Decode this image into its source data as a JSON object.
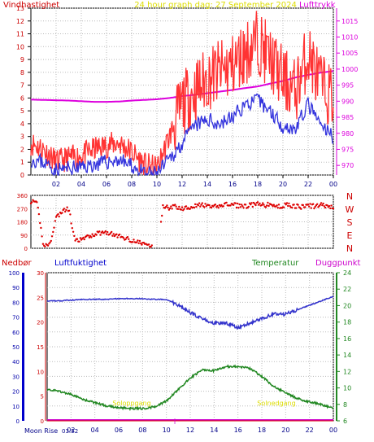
{
  "chart_data": [
    {
      "type": "line",
      "title": "24 hour graph dag:  27 September 2024",
      "series": [
        {
          "name": "Vindhastighet",
          "color": "#dd0000",
          "axis": "left"
        },
        {
          "name": "Vindkast",
          "color": "#ff3333",
          "axis": "left"
        },
        {
          "name": "Lufttrykk",
          "color": "#dd00dd",
          "axis": "right"
        }
      ],
      "left_label": "Vindhastighet",
      "right_label": "Lufttrykk",
      "y_left_ticks": [
        "0",
        "1",
        "2",
        "3",
        "4",
        "5",
        "6",
        "7",
        "8",
        "9",
        "10",
        "11",
        "12",
        "13"
      ],
      "y_right_ticks": [
        "970",
        "975",
        "980",
        "985",
        "990",
        "995",
        "1000",
        "1005",
        "1010",
        "1015"
      ],
      "ylim_left": [
        0,
        13
      ],
      "ylim_right": [
        967,
        1019
      ],
      "x_ticks": [
        "02",
        "04",
        "06",
        "08",
        "10",
        "12",
        "14",
        "16",
        "18",
        "20",
        "22",
        "00"
      ],
      "hours": [
        0,
        1,
        2,
        3,
        4,
        5,
        6,
        7,
        8,
        9,
        10,
        11,
        12,
        13,
        14,
        15,
        16,
        17,
        18,
        19,
        20,
        21,
        22,
        23,
        24
      ],
      "gust": [
        2.5,
        2.0,
        1.0,
        1.3,
        1.5,
        2.0,
        2.3,
        2.5,
        1.8,
        0.8,
        0.5,
        3.0,
        5.5,
        6.5,
        7.5,
        8.0,
        8.5,
        9.5,
        10.5,
        9.0,
        7.5,
        6.5,
        9.5,
        7.0,
        6.0
      ],
      "wind_avg": [
        1.2,
        1.0,
        0.4,
        0.5,
        0.6,
        0.8,
        1.0,
        1.2,
        0.7,
        0.1,
        0.1,
        1.2,
        2.5,
        3.8,
        4.3,
        4.0,
        4.5,
        5.5,
        5.8,
        5.0,
        3.8,
        3.6,
        5.5,
        3.8,
        3.0
      ],
      "pressure": [
        990.5,
        990.4,
        990.3,
        990.2,
        990.0,
        989.8,
        989.8,
        989.9,
        990.2,
        990.4,
        990.6,
        991.0,
        991.6,
        992.0,
        992.5,
        993.0,
        993.5,
        994.1,
        994.6,
        995.5,
        996.3,
        997.4,
        998.2,
        998.9,
        999.4
      ]
    },
    {
      "type": "scatter",
      "series": [
        {
          "name": "Vindretning",
          "color": "#dd0000"
        }
      ],
      "y_ticks": [
        "360",
        "270",
        "180",
        "90",
        "0"
      ],
      "ylim": [
        0,
        360
      ],
      "compass_labels": [
        "N",
        "W",
        "S",
        "E",
        "N"
      ],
      "x_ticks": [
        "02",
        "04",
        "06",
        "08",
        "10",
        "12",
        "14",
        "16",
        "18",
        "20",
        "22",
        "00"
      ],
      "hours": [
        0,
        0.5,
        1,
        1.5,
        2,
        2.5,
        3,
        3.5,
        4,
        4.5,
        5,
        5.5,
        6,
        6.5,
        7,
        7.5,
        8,
        8.5,
        9,
        9.5,
        10,
        10.5,
        11,
        11.5,
        12,
        12.5,
        13,
        13.5,
        14,
        14.5,
        15,
        15.5,
        16,
        16.5,
        17,
        17.5,
        18,
        18.5,
        19,
        19.5,
        20,
        20.5,
        21,
        21.5,
        22,
        22.5,
        23,
        23.5,
        24
      ],
      "direction": [
        320,
        300,
        20,
        25,
        210,
        250,
        270,
        45,
        60,
        75,
        95,
        105,
        110,
        95,
        80,
        70,
        55,
        40,
        30,
        15,
        5,
        290,
        275,
        285,
        270,
        280,
        290,
        295,
        285,
        280,
        290,
        300,
        295,
        290,
        285,
        295,
        300,
        290,
        300,
        280,
        290,
        295,
        285,
        280,
        290,
        285,
        295,
        290,
        270
      ]
    },
    {
      "type": "line",
      "series": [
        {
          "name": "Nedbør",
          "color": "#dd0000",
          "axis": "precip"
        },
        {
          "name": "Luftfuktighet",
          "color": "#3333cc",
          "axis": "left"
        },
        {
          "name": "Temperatur",
          "color": "#228822",
          "axis": "right"
        },
        {
          "name": "Duggpunkt",
          "color": "#cc00cc",
          "axis": "right"
        }
      ],
      "labels": {
        "precip": "Nedbør",
        "humidity": "Luftfuktighet",
        "temperature": "Temperatur",
        "dewpoint": "Duggpunkt"
      },
      "humidity_ticks": [
        "100",
        "90",
        "80",
        "70",
        "60",
        "50",
        "40",
        "30",
        "20",
        "10",
        "0"
      ],
      "precip_ticks": [
        "30",
        "25",
        "20",
        "15",
        "10",
        "5",
        "0"
      ],
      "temp_ticks": [
        "24",
        "22",
        "20",
        "18",
        "16",
        "14",
        "12",
        "10",
        "8",
        "6"
      ],
      "ylim_humidity": [
        0,
        100
      ],
      "ylim_precip": [
        0,
        30
      ],
      "ylim_temp": [
        6,
        24
      ],
      "x_ticks": [
        "02",
        "04",
        "06",
        "08",
        "10",
        "12",
        "14",
        "16",
        "18",
        "20",
        "22",
        "00"
      ],
      "hours": [
        0,
        1,
        2,
        3,
        4,
        5,
        6,
        7,
        8,
        9,
        10,
        11,
        12,
        13,
        14,
        15,
        16,
        17,
        18,
        19,
        20,
        21,
        22,
        23,
        24
      ],
      "humidity": [
        81,
        81,
        81.5,
        82,
        82,
        82,
        82.5,
        82.5,
        82.5,
        82,
        82,
        78,
        73,
        69,
        66,
        66,
        63,
        66,
        69,
        72,
        72,
        75,
        78,
        81,
        84
      ],
      "temperature": [
        9.8,
        9.6,
        9.2,
        8.6,
        8.2,
        7.8,
        7.6,
        7.5,
        7.5,
        7.7,
        8.4,
        9.8,
        11.2,
        12.2,
        12.1,
        12.6,
        12.6,
        12.4,
        11.4,
        10.2,
        9.4,
        8.7,
        8.3,
        8.0,
        7.5
      ],
      "dewpoint": [
        6.0,
        6.0,
        6.0,
        6.0,
        6.0,
        6.0,
        6.0,
        6.0,
        6.0,
        6.0,
        6.0,
        6.0,
        6.0,
        6.0,
        6.0,
        6.0,
        6.0,
        6.0,
        6.0,
        6.0,
        6.0,
        6.0,
        6.0,
        6.0,
        6.0
      ],
      "precip": [
        0,
        0,
        0,
        0,
        0,
        0,
        0,
        0,
        0,
        0,
        0,
        0,
        0,
        0,
        0,
        0,
        0,
        0,
        0,
        0,
        0,
        0,
        0,
        0,
        0
      ],
      "annotations": {
        "moonrise": "Moon Rise",
        "sunrise": "Soloppgang",
        "sunset": "Solnedgang",
        "moonset_marker": "↑",
        "moonrise_time": "03:52"
      }
    }
  ]
}
